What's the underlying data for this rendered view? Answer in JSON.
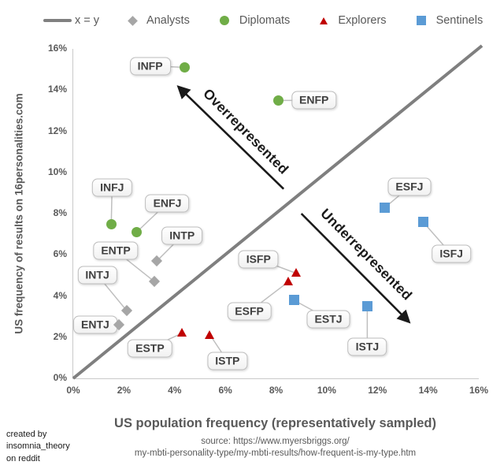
{
  "legend": {
    "line_label": "x = y",
    "line_color": "#808080",
    "groups": [
      {
        "name": "Analysts",
        "marker": "diamond",
        "color": "#A6A6A6"
      },
      {
        "name": "Diplomats",
        "marker": "circle",
        "color": "#70AD47"
      },
      {
        "name": "Explorers",
        "marker": "triangle",
        "color": "#C00000"
      },
      {
        "name": "Sentinels",
        "marker": "square",
        "color": "#5B9BD5"
      }
    ]
  },
  "chart_data": {
    "type": "scatter",
    "xlabel": "US population frequency (representatively sampled)",
    "ylabel": "US frequency of results on 16personalities.com",
    "xlim": [
      0,
      16
    ],
    "ylim": [
      0,
      16
    ],
    "x_tick_labels": [
      "0%",
      "2%",
      "4%",
      "6%",
      "8%",
      "10%",
      "12%",
      "14%",
      "16%"
    ],
    "y_tick_labels": [
      "0%",
      "2%",
      "4%",
      "6%",
      "8%",
      "10%",
      "12%",
      "14%",
      "16%"
    ],
    "grid": false,
    "legend_position": "top",
    "reference_line": {
      "label": "x = y",
      "from": [
        0,
        0
      ],
      "to": [
        16,
        16
      ],
      "color": "#7F7F7F",
      "width": 4
    },
    "series": [
      {
        "name": "Analysts",
        "marker": "diamond",
        "color": "#A6A6A6",
        "points": [
          {
            "label": "INTJ",
            "x": 2.1,
            "y": 3.3,
            "label_dx": -37,
            "label_dy": -45
          },
          {
            "label": "INTP",
            "x": 3.3,
            "y": 5.7,
            "label_dx": 32,
            "label_dy": -32
          },
          {
            "label": "ENTJ",
            "x": 1.8,
            "y": 2.6,
            "label_dx": -30,
            "label_dy": 0
          },
          {
            "label": "ENTP",
            "x": 3.2,
            "y": 4.7,
            "label_dx": -49,
            "label_dy": -39
          }
        ]
      },
      {
        "name": "Diplomats",
        "marker": "circle",
        "color": "#70AD47",
        "points": [
          {
            "label": "INFJ",
            "x": 1.5,
            "y": 7.5,
            "label_dx": 1,
            "label_dy": -46
          },
          {
            "label": "INFP",
            "x": 4.4,
            "y": 15.1,
            "label_dx": -44,
            "label_dy": -2
          },
          {
            "label": "ENFJ",
            "x": 2.5,
            "y": 7.1,
            "label_dx": 39,
            "label_dy": -37
          },
          {
            "label": "ENFP",
            "x": 8.1,
            "y": 13.5,
            "label_dx": 45,
            "label_dy": 0
          }
        ]
      },
      {
        "name": "Explorers",
        "marker": "triangle",
        "color": "#C00000",
        "points": [
          {
            "label": "ISTP",
            "x": 5.4,
            "y": 2.1,
            "label_dx": 22,
            "label_dy": 33
          },
          {
            "label": "ISFP",
            "x": 8.8,
            "y": 5.1,
            "label_dx": -48,
            "label_dy": -18
          },
          {
            "label": "ESTP",
            "x": 4.3,
            "y": 2.2,
            "label_dx": -41,
            "label_dy": 19
          },
          {
            "label": "ESFP",
            "x": 8.5,
            "y": 4.7,
            "label_dx": -50,
            "label_dy": 38
          }
        ]
      },
      {
        "name": "Sentinels",
        "marker": "square",
        "color": "#5B9BD5",
        "points": [
          {
            "label": "ISTJ",
            "x": 11.6,
            "y": 3.5,
            "label_dx": 0,
            "label_dy": 51
          },
          {
            "label": "ISFJ",
            "x": 13.8,
            "y": 7.6,
            "label_dx": 36,
            "label_dy": 41
          },
          {
            "label": "ESTJ",
            "x": 8.7,
            "y": 3.8,
            "label_dx": 44,
            "label_dy": 24
          },
          {
            "label": "ESFJ",
            "x": 12.3,
            "y": 8.3,
            "label_dx": 31,
            "label_dy": -26
          }
        ]
      }
    ],
    "annotations": [
      {
        "text": "Overrepresented",
        "arrow_from": [
          8.3,
          9.2
        ],
        "arrow_to": [
          4.2,
          14.1
        ],
        "text_at": [
          6.8,
          12.0
        ],
        "rotation": 45
      },
      {
        "text": "Underrepresented",
        "arrow_from": [
          9.0,
          8.0
        ],
        "arrow_to": [
          13.2,
          2.8
        ],
        "text_at": [
          11.55,
          6.0
        ],
        "rotation": 45
      }
    ]
  },
  "footer": {
    "credit": "created by\ninsomnia_theory\non reddit",
    "source_line1": "source: https://www.myersbriggs.org/",
    "source_line2": "my-mbti-personality-type/my-mbti-results/how-frequent-is-my-type.htm"
  }
}
